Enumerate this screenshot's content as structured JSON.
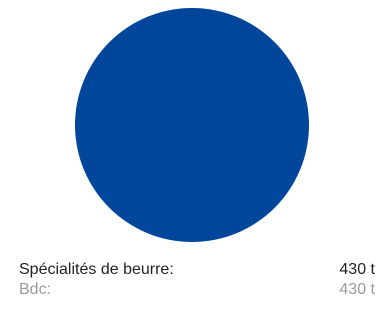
{
  "chart_data": {
    "type": "pie",
    "slices": [
      {
        "label": "Bdc",
        "value": 430,
        "value_label": "430 t",
        "color": "#00469b"
      }
    ],
    "total": {
      "label": "Spécialités de beurre:",
      "value": 430,
      "value_label": "430 t"
    },
    "legend": {
      "rows": [
        {
          "label": "Spécialités de beurre:",
          "value": "430 t"
        },
        {
          "label": "Bdc:",
          "value": "430 t"
        }
      ]
    }
  }
}
